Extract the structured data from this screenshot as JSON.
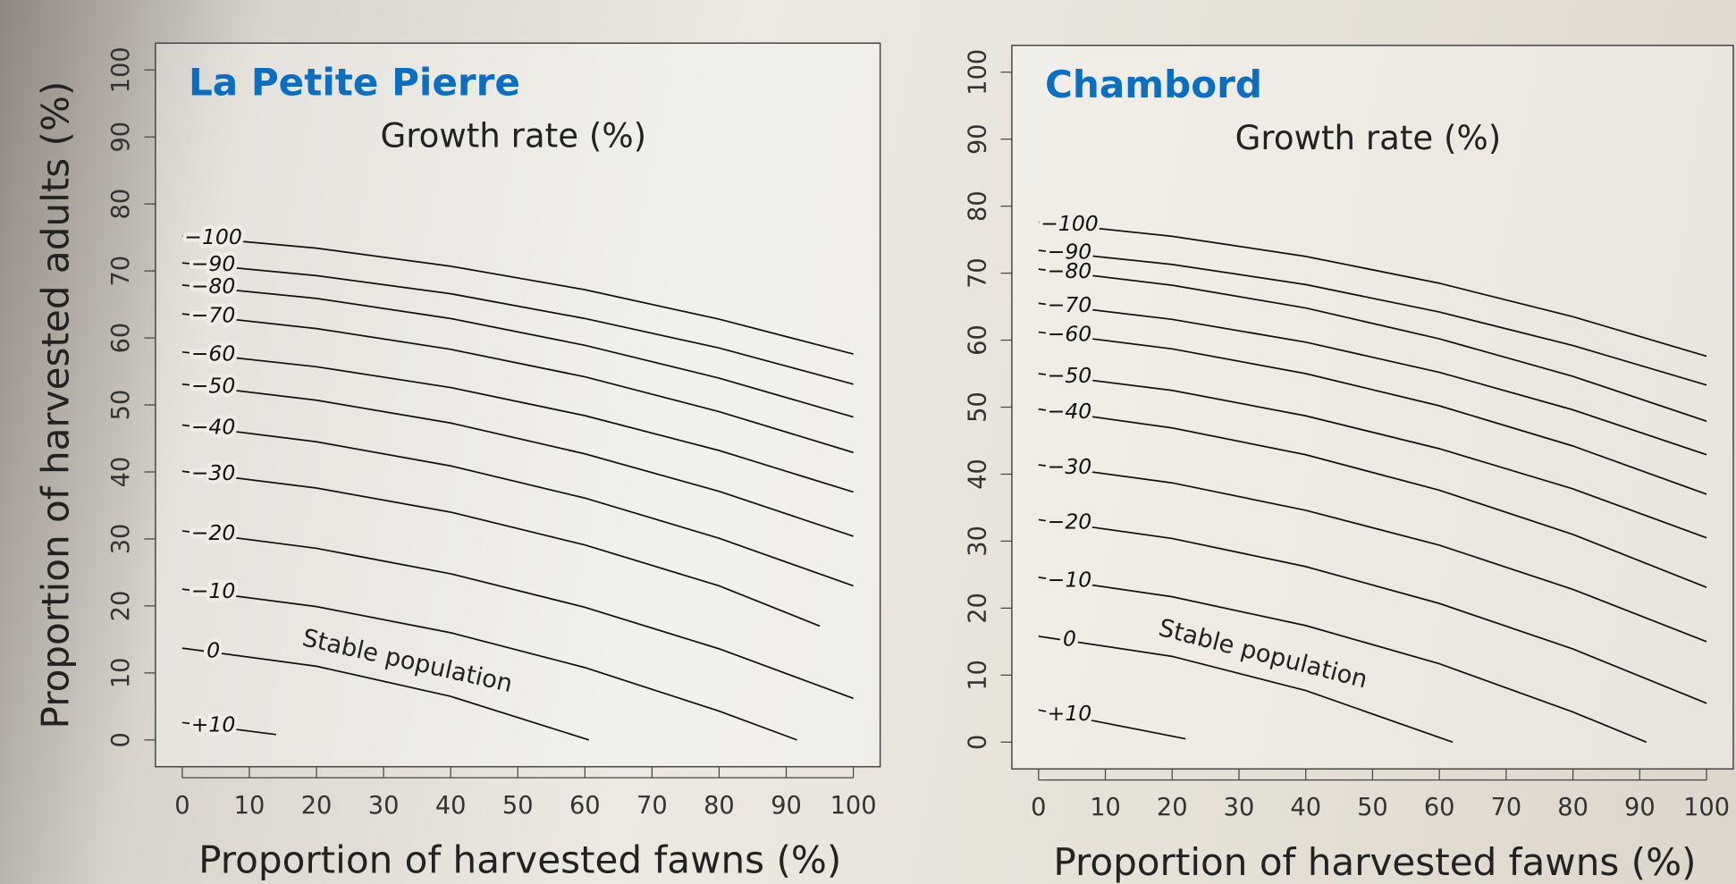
{
  "chart_data": [
    {
      "type": "line",
      "title": "La Petite Pierre",
      "subtitle": "Growth rate (%)",
      "x_label": "Proportion of harvested fawns (%)",
      "y_label": "Proportion of harvested adults (%)",
      "annotation": "Stable population",
      "title_color": "#0a6fc2",
      "xlim": [
        -4,
        104
      ],
      "ylim": [
        -4,
        104
      ],
      "xticks": [
        0,
        10,
        20,
        30,
        40,
        50,
        60,
        70,
        80,
        90,
        100
      ],
      "yticks": [
        0,
        10,
        20,
        30,
        40,
        50,
        60,
        70,
        80,
        90,
        100
      ],
      "series": [
        {
          "name": "−100",
          "color": "#111111",
          "x": [
            0,
            20,
            40,
            60,
            80,
            100
          ],
          "values": [
            75.2,
            73.4,
            70.7,
            67.2,
            62.8,
            57.6
          ]
        },
        {
          "name": "−90",
          "color": "#111111",
          "x": [
            0,
            20,
            40,
            60,
            80,
            100
          ],
          "values": [
            71.2,
            69.3,
            66.6,
            62.9,
            58.5,
            53.1
          ]
        },
        {
          "name": "−80",
          "color": "#111111",
          "x": [
            0,
            20,
            40,
            60,
            80,
            100
          ],
          "values": [
            67.9,
            65.9,
            62.9,
            58.9,
            54.0,
            48.2
          ]
        },
        {
          "name": "−70",
          "color": "#111111",
          "x": [
            0,
            20,
            40,
            60,
            80,
            100
          ],
          "values": [
            63.6,
            61.4,
            58.3,
            54.2,
            49.0,
            42.9
          ]
        },
        {
          "name": "−60",
          "color": "#111111",
          "x": [
            0,
            20,
            40,
            60,
            80,
            100
          ],
          "values": [
            57.9,
            55.7,
            52.6,
            48.4,
            43.2,
            37.0
          ]
        },
        {
          "name": "−50",
          "color": "#111111",
          "x": [
            0,
            20,
            40,
            60,
            80,
            100
          ],
          "values": [
            53.1,
            50.7,
            47.3,
            42.7,
            37.1,
            30.4
          ]
        },
        {
          "name": "−40",
          "color": "#111111",
          "x": [
            0,
            20,
            40,
            60,
            80,
            100
          ],
          "values": [
            47.0,
            44.5,
            40.9,
            36.1,
            30.1,
            23.0
          ]
        },
        {
          "name": "−30",
          "color": "#111111",
          "x": [
            0,
            20,
            40,
            60,
            80,
            95
          ],
          "values": [
            40.1,
            37.6,
            34.0,
            29.1,
            23.0,
            17.0
          ]
        },
        {
          "name": "−20",
          "color": "#111111",
          "x": [
            0,
            20,
            40,
            60,
            80,
            100
          ],
          "values": [
            31.2,
            28.6,
            24.8,
            19.8,
            13.6,
            6.2
          ]
        },
        {
          "name": "−10",
          "color": "#111111",
          "x": [
            0,
            20,
            40,
            60,
            80,
            91.6
          ],
          "values": [
            22.5,
            19.9,
            16.0,
            10.8,
            4.3,
            0
          ]
        },
        {
          "name": "0",
          "color": "#111111",
          "x": [
            0,
            20,
            40,
            60.6
          ],
          "values": [
            13.7,
            11.0,
            6.5,
            0
          ]
        },
        {
          "name": "+10",
          "color": "#111111",
          "x": [
            0,
            14
          ],
          "values": [
            2.6,
            0.8
          ]
        }
      ]
    },
    {
      "type": "line",
      "title": "Chambord",
      "subtitle": "Growth rate (%)",
      "x_label": "Proportion of harvested fawns (%)",
      "annotation": "Stable population",
      "title_color": "#0a6fc2",
      "xlim": [
        -4,
        104
      ],
      "ylim": [
        -4,
        104
      ],
      "xticks": [
        0,
        10,
        20,
        30,
        40,
        50,
        60,
        70,
        80,
        90,
        100
      ],
      "yticks": [
        0,
        10,
        20,
        30,
        40,
        50,
        60,
        70,
        80,
        90,
        100
      ],
      "series": [
        {
          "name": "−100",
          "color": "#111111",
          "x": [
            0,
            20,
            40,
            60,
            80,
            100
          ],
          "values": [
            77.6,
            75.5,
            72.5,
            68.5,
            63.5,
            57.6
          ]
        },
        {
          "name": "−90",
          "color": "#111111",
          "x": [
            0,
            20,
            40,
            60,
            80,
            100
          ],
          "values": [
            73.4,
            71.3,
            68.3,
            64.2,
            59.2,
            53.3
          ]
        },
        {
          "name": "−80",
          "color": "#111111",
          "x": [
            0,
            20,
            40,
            60,
            80,
            100
          ],
          "values": [
            70.6,
            68.2,
            64.8,
            60.2,
            54.6,
            47.9
          ]
        },
        {
          "name": "−70",
          "color": "#111111",
          "x": [
            0,
            20,
            40,
            60,
            80,
            100
          ],
          "values": [
            65.5,
            63.1,
            59.7,
            55.2,
            49.6,
            42.9
          ]
        },
        {
          "name": "−60",
          "color": "#111111",
          "x": [
            0,
            20,
            40,
            60,
            80,
            100
          ],
          "values": [
            61.2,
            58.7,
            55.0,
            50.2,
            44.2,
            37.0
          ]
        },
        {
          "name": "−50",
          "color": "#111111",
          "x": [
            0,
            20,
            40,
            60,
            80,
            100
          ],
          "values": [
            55.0,
            52.5,
            48.7,
            43.8,
            37.8,
            30.5
          ]
        },
        {
          "name": "−40",
          "color": "#111111",
          "x": [
            0,
            20,
            40,
            60,
            80,
            100
          ],
          "values": [
            49.7,
            46.9,
            42.9,
            37.6,
            31.0,
            23.1
          ]
        },
        {
          "name": "−30",
          "color": "#111111",
          "x": [
            0,
            20,
            40,
            60,
            80,
            100
          ],
          "values": [
            41.4,
            38.7,
            34.6,
            29.4,
            22.8,
            15.0
          ]
        },
        {
          "name": "−20",
          "color": "#111111",
          "x": [
            0,
            20,
            40,
            60,
            80,
            100
          ],
          "values": [
            33.2,
            30.4,
            26.2,
            20.7,
            13.9,
            5.8
          ]
        },
        {
          "name": "−10",
          "color": "#111111",
          "x": [
            0,
            20,
            40,
            60,
            80,
            91
          ],
          "values": [
            24.6,
            21.7,
            17.4,
            11.7,
            4.5,
            0
          ]
        },
        {
          "name": "0",
          "color": "#111111",
          "x": [
            0,
            20,
            40,
            62
          ],
          "values": [
            15.8,
            12.8,
            7.7,
            0
          ]
        },
        {
          "name": "+10",
          "color": "#111111",
          "x": [
            0,
            22
          ],
          "values": [
            4.8,
            0.5
          ]
        }
      ]
    }
  ]
}
